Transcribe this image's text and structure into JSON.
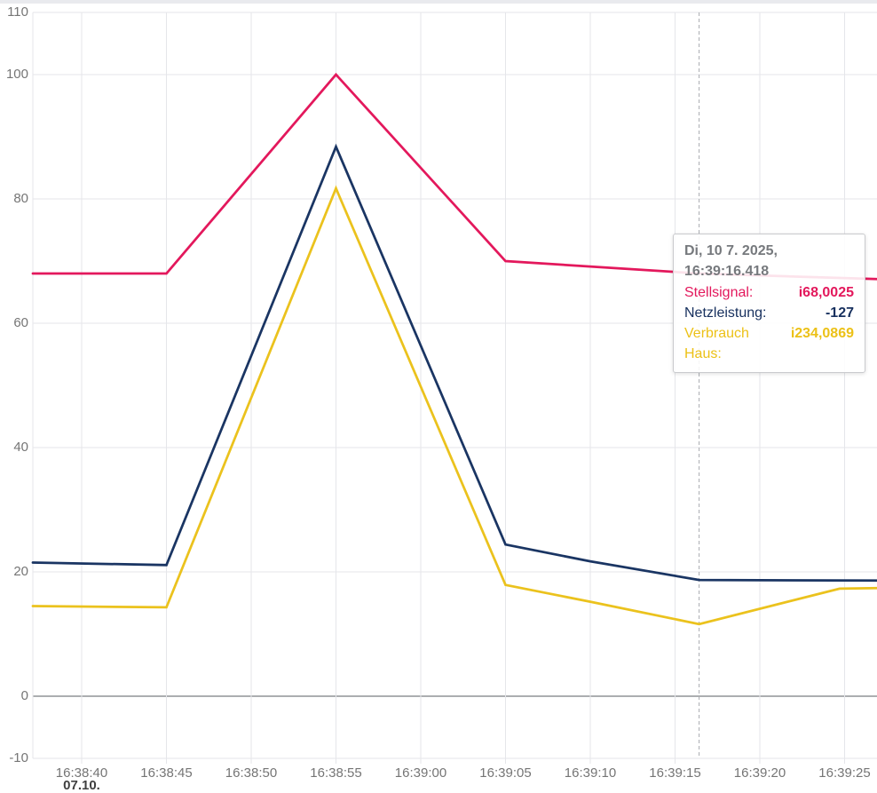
{
  "chart_data": {
    "type": "line",
    "title": "",
    "grid": true,
    "legend_position": "none",
    "x_axis": {
      "unit": "time",
      "base_time": "16:38:40",
      "tick_labels": [
        "16:38:40",
        "16:38:45",
        "16:38:50",
        "16:38:55",
        "16:39:00",
        "16:39:05",
        "16:39:10",
        "16:39:15",
        "16:39:20",
        "16:39:25"
      ],
      "tick_times_s": [
        0,
        5,
        10,
        15,
        20,
        25,
        30,
        35,
        40,
        45
      ],
      "date_label": "07.10.",
      "visible_range_s": [
        -2.88,
        46.9
      ]
    },
    "y_axis": {
      "tick_labels": [
        "110",
        "100",
        "80",
        "60",
        "40",
        "20",
        "0",
        "-10"
      ],
      "tick_values": [
        110,
        100,
        80,
        60,
        40,
        20,
        0,
        -10
      ],
      "range": [
        -10,
        110
      ]
    },
    "series": [
      {
        "name": "Stellsignal",
        "color": "#e3185c",
        "points": [
          [
            -2.88,
            68
          ],
          [
            5,
            68
          ],
          [
            15,
            100
          ],
          [
            25,
            70
          ],
          [
            36.418,
            68.0
          ],
          [
            46.9,
            67.1
          ]
        ]
      },
      {
        "name": "Netzleistung",
        "color": "#1a3563",
        "points": [
          [
            -2.88,
            21.5
          ],
          [
            5,
            21.1
          ],
          [
            15,
            88.4
          ],
          [
            25,
            24.4
          ],
          [
            30,
            21.7
          ],
          [
            36.418,
            18.7
          ],
          [
            46.9,
            18.6
          ]
        ]
      },
      {
        "name": "Verbrauch Haus",
        "color": "#ebc21d",
        "points": [
          [
            -2.88,
            14.5
          ],
          [
            5,
            14.3
          ],
          [
            15,
            81.7
          ],
          [
            25,
            17.9
          ],
          [
            30,
            15.2
          ],
          [
            36.418,
            11.6
          ],
          [
            44.7,
            17.3
          ],
          [
            46.9,
            17.4
          ]
        ]
      }
    ],
    "crosshair_time_s": 36.418,
    "colors": {
      "grid": "#e5e6ea",
      "zero_line": "#595d61",
      "crosshair": "#a9acb1",
      "axis_label": "#757575",
      "date_label": "#3f3f3f"
    }
  },
  "tooltip": {
    "header": "Di, 10 7. 2025, 16:39:16.418",
    "rows": [
      {
        "label": "Stellsignal:",
        "value": "i68,0025",
        "color": "#e3185c"
      },
      {
        "label": "Netzleistung:",
        "value": "-127",
        "color": "#17305e"
      },
      {
        "label": "Verbrauch Haus:",
        "value": "i234,0869",
        "color": "#ecc117"
      }
    ]
  }
}
